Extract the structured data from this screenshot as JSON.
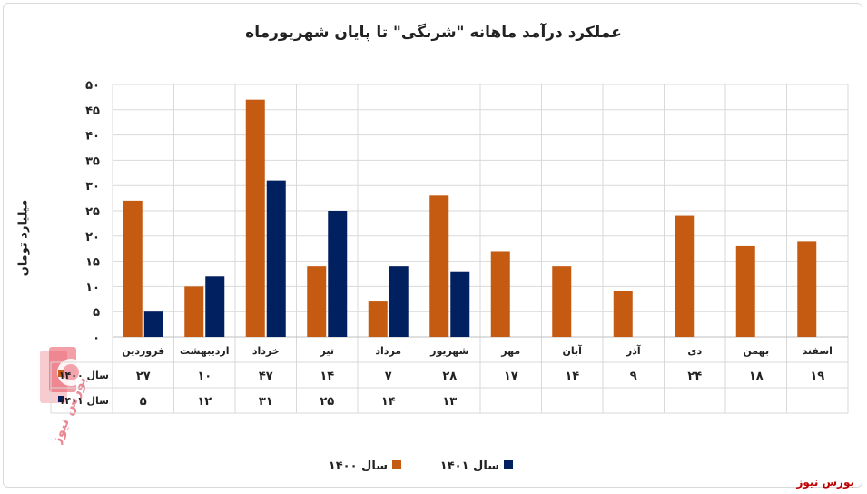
{
  "chart_data": {
    "type": "bar",
    "title": "عملکرد درآمد ماهانه \"شرنگی\" تا پایان شهریورماه",
    "ylabel": "میلیارد تومان",
    "ylim": [
      0,
      50
    ],
    "yticks": [
      "۰",
      "۵",
      "۱۰",
      "۱۵",
      "۲۰",
      "۲۵",
      "۳۰",
      "۳۵",
      "۴۰",
      "۴۵",
      "۵۰"
    ],
    "categories": [
      "فروردین",
      "اردیبهشت",
      "خرداد",
      "تیر",
      "مرداد",
      "شهریور",
      "مهر",
      "آبان",
      "آذر",
      "دی",
      "بهمن",
      "اسفند"
    ],
    "series": [
      {
        "name": "سال ۱۴۰۰",
        "color": "#c55a11",
        "values": [
          27,
          10,
          47,
          14,
          7,
          28,
          17,
          14,
          9,
          24,
          18,
          19
        ],
        "labels": [
          "۲۷",
          "۱۰",
          "۴۷",
          "۱۴",
          "۷",
          "۲۸",
          "۱۷",
          "۱۴",
          "۹",
          "۲۴",
          "۱۸",
          "۱۹"
        ]
      },
      {
        "name": "سال ۱۴۰۱",
        "color": "#002060",
        "values": [
          5,
          12,
          31,
          25,
          14,
          13,
          null,
          null,
          null,
          null,
          null,
          null
        ],
        "labels": [
          "۵",
          "۱۲",
          "۳۱",
          "۲۵",
          "۱۴",
          "۱۳",
          "",
          "",
          "",
          "",
          "",
          ""
        ]
      }
    ],
    "grid": true,
    "legend": "bottom-center",
    "data_table": true
  },
  "watermark_text": "بورس نیوز",
  "brand": "بورس نیوز"
}
